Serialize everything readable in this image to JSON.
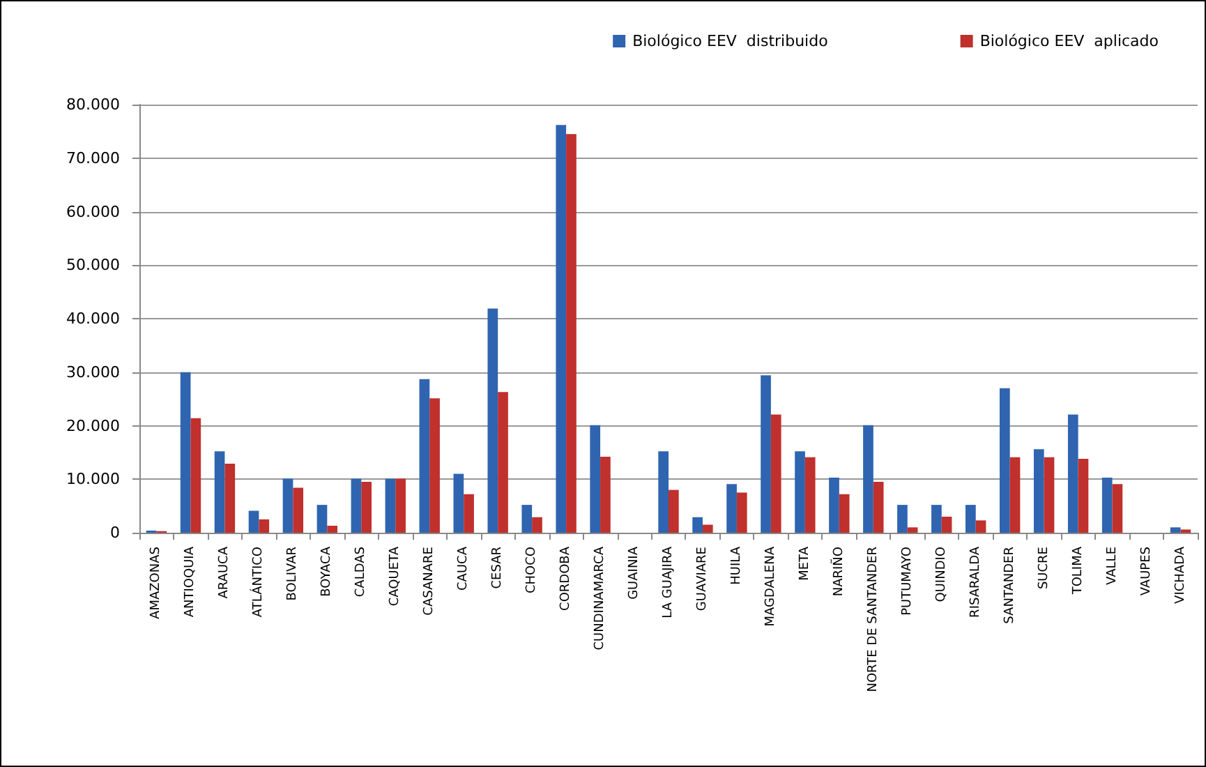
{
  "chart_data": {
    "type": "bar",
    "categories": [
      "AMAZONAS",
      "ANTIOQUIA",
      "ARAUCA",
      "ATLÁNTICO",
      "BOLIVAR",
      "BOYACA",
      "CALDAS",
      "CAQUETA",
      "CASANARE",
      "CAUCA",
      "CESAR",
      "CHOCO",
      "CORDOBA",
      "CUNDINAMARCA",
      "GUAINIA",
      "LA GUAJIRA",
      "GUAVIARE",
      "HUILA",
      "MAGDALENA",
      "META",
      "NARIÑO",
      "NORTE DE SANTANDER",
      "PUTUMAYO",
      "QUINDIO",
      "RISARALDA",
      "SANTANDER",
      "SUCRE",
      "TOLIMA",
      "VALLE",
      "VAUPES",
      "VICHADA"
    ],
    "series": [
      {
        "name": "Biológico EEV  distribuido",
        "color": "#2f64b0",
        "values": [
          400,
          30000,
          15200,
          4100,
          10100,
          5200,
          10100,
          10100,
          28700,
          11000,
          41900,
          5200,
          76200,
          20100,
          0,
          15200,
          2900,
          9100,
          29400,
          15200,
          10300,
          20100,
          5200,
          5200,
          5200,
          27000,
          15600,
          22100,
          10300,
          0,
          1000
        ]
      },
      {
        "name": "Biológico EEV  aplicado",
        "color": "#c0302c",
        "values": [
          300,
          21400,
          12900,
          2500,
          8400,
          1300,
          9500,
          10100,
          25100,
          7200,
          26300,
          2900,
          74500,
          14200,
          0,
          8000,
          1500,
          7500,
          22100,
          14100,
          7200,
          9500,
          1000,
          3000,
          2300,
          14100,
          14100,
          13800,
          9100,
          0,
          600
        ]
      }
    ],
    "ylim": [
      0,
      80000
    ],
    "yticks": [
      0,
      {
        "value": 10000,
        "label": "10.000"
      },
      {
        "value": 20000,
        "label": "20.000"
      },
      {
        "value": 30000,
        "label": "30.000"
      },
      {
        "value": 40000,
        "label": "40.000"
      },
      {
        "value": 50000,
        "label": "50.000"
      },
      {
        "value": 60000,
        "label": "60.000"
      },
      {
        "value": 70000,
        "label": "70.000"
      },
      {
        "value": 80000,
        "label": "80.000"
      }
    ],
    "grid": "y",
    "legend": "top right"
  }
}
